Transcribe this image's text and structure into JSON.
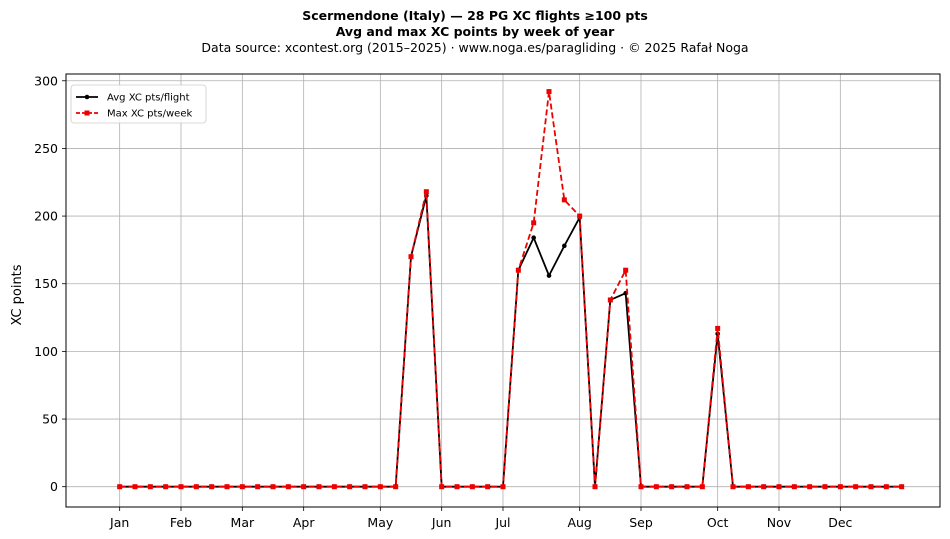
{
  "chart_data": {
    "type": "line",
    "title": "Scermendone (Italy)  —  28 PG XC flights ≥100 pts",
    "subtitle": "Avg and max XC points by week of year",
    "source_line": "Data source: xcontest.org (2015–2025)  ·  www.noga.es/paragliding  ·  © 2025 Rafał Noga",
    "xlabel": "",
    "ylabel": "XC points",
    "xlim": [
      -2.5,
      54.5
    ],
    "ylim": [
      -15,
      305
    ],
    "grid": true,
    "legend_position": "top-left",
    "x_ticks": [
      {
        "label": "Jan",
        "x": 1
      },
      {
        "label": "Feb",
        "x": 5
      },
      {
        "label": "Mar",
        "x": 9
      },
      {
        "label": "Apr",
        "x": 13
      },
      {
        "label": "May",
        "x": 18
      },
      {
        "label": "Jun",
        "x": 22
      },
      {
        "label": "Jul",
        "x": 26
      },
      {
        "label": "Aug",
        "x": 31
      },
      {
        "label": "Sep",
        "x": 35
      },
      {
        "label": "Oct",
        "x": 40
      },
      {
        "label": "Nov",
        "x": 44
      },
      {
        "label": "Dec",
        "x": 48
      }
    ],
    "y_ticks": [
      0,
      50,
      100,
      150,
      200,
      250,
      300
    ],
    "x": [
      1,
      2,
      3,
      4,
      5,
      6,
      7,
      8,
      9,
      10,
      11,
      12,
      13,
      14,
      15,
      16,
      17,
      18,
      19,
      20,
      21,
      22,
      23,
      24,
      25,
      26,
      27,
      28,
      29,
      30,
      31,
      32,
      33,
      34,
      35,
      36,
      37,
      38,
      39,
      40,
      41,
      42,
      43,
      44,
      45,
      46,
      47,
      48,
      49,
      50,
      51,
      52
    ],
    "series": [
      {
        "name": "Avg XC pts/flight",
        "color": "#000000",
        "style": "solid",
        "marker": "circle",
        "values": [
          0,
          0,
          0,
          0,
          0,
          0,
          0,
          0,
          0,
          0,
          0,
          0,
          0,
          0,
          0,
          0,
          0,
          0,
          0,
          170,
          215,
          0,
          0,
          0,
          0,
          0,
          160,
          184,
          156,
          178,
          199,
          0,
          138,
          143,
          0,
          0,
          0,
          0,
          0,
          113,
          0,
          0,
          0,
          0,
          0,
          0,
          0,
          0,
          0,
          0,
          0,
          0
        ]
      },
      {
        "name": "Max XC pts/week",
        "color": "#ee0000",
        "style": "dashed",
        "marker": "square",
        "values": [
          0,
          0,
          0,
          0,
          0,
          0,
          0,
          0,
          0,
          0,
          0,
          0,
          0,
          0,
          0,
          0,
          0,
          0,
          0,
          170,
          218,
          0,
          0,
          0,
          0,
          0,
          160,
          195,
          292,
          212,
          200,
          0,
          138,
          160,
          0,
          0,
          0,
          0,
          0,
          117,
          0,
          0,
          0,
          0,
          0,
          0,
          0,
          0,
          0,
          0,
          0,
          0
        ]
      }
    ]
  }
}
